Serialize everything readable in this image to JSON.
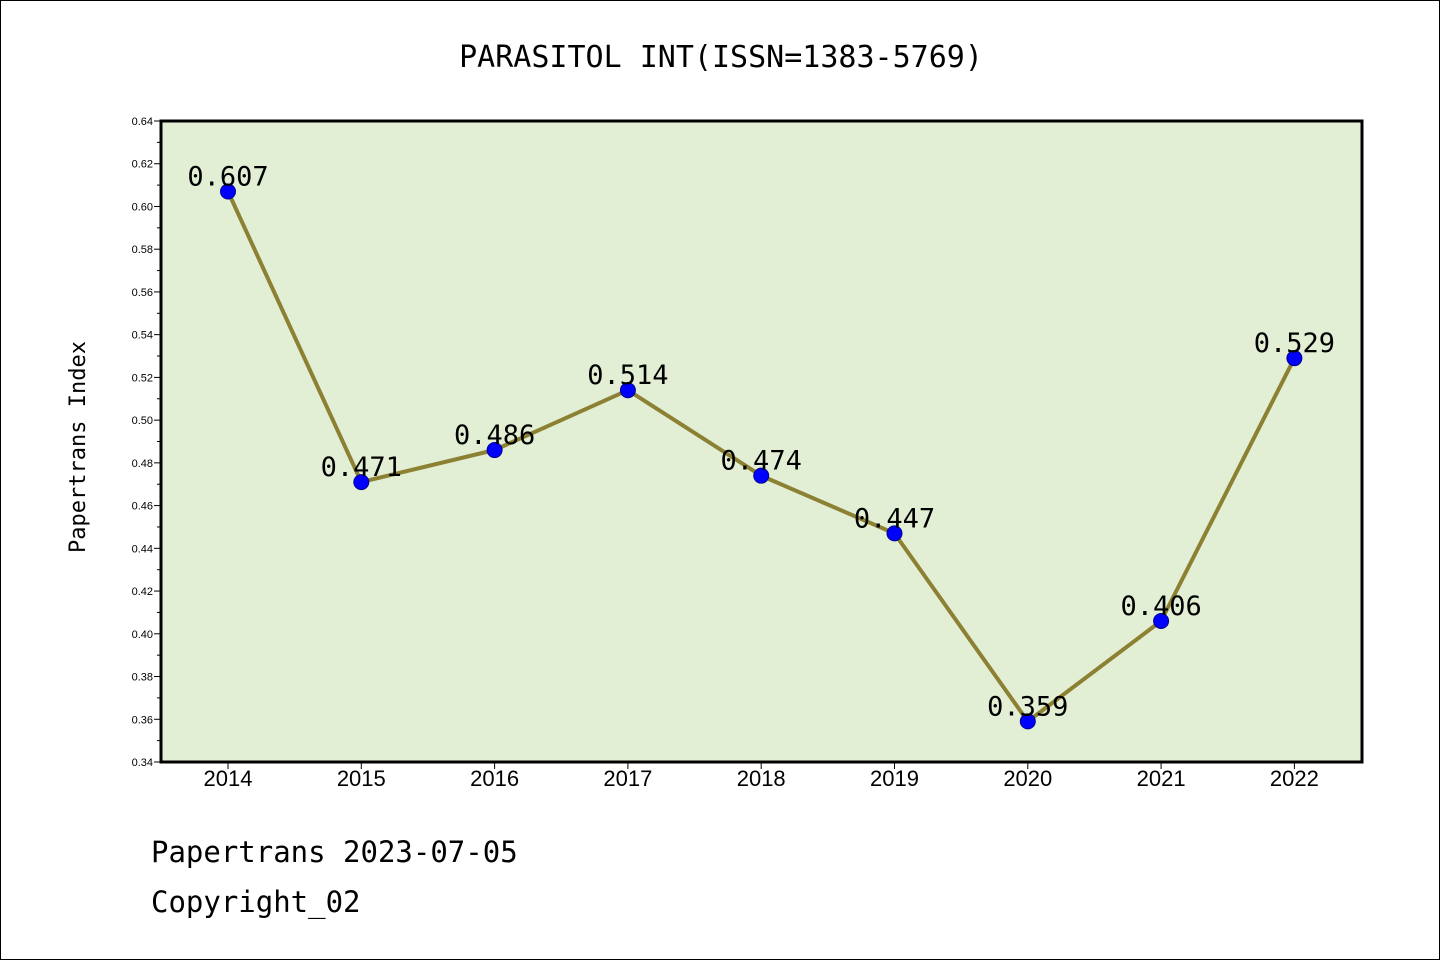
{
  "chart_data": {
    "type": "line",
    "title": "PARASITOL INT(ISSN=1383-5769)",
    "xlabel": "",
    "ylabel": "Papertrans Index",
    "categories": [
      "2014",
      "2015",
      "2016",
      "2017",
      "2018",
      "2019",
      "2020",
      "2021",
      "2022"
    ],
    "values": [
      0.607,
      0.471,
      0.486,
      0.514,
      0.474,
      0.447,
      0.359,
      0.406,
      0.529
    ],
    "data_labels": [
      "0.607",
      "0.471",
      "0.486",
      "0.514",
      "0.474",
      "0.447",
      "0.359",
      "0.406",
      "0.529"
    ],
    "ylim": [
      0.34,
      0.64
    ],
    "yticks": [
      "0.34",
      "0.36",
      "0.38",
      "0.40",
      "0.42",
      "0.44",
      "0.46",
      "0.48",
      "0.50",
      "0.52",
      "0.54",
      "0.56",
      "0.58",
      "0.60",
      "0.62",
      "0.64"
    ],
    "grid": false,
    "colors": {
      "plot_background": "#e2efd5",
      "line": "#8c8033",
      "marker": "#0000ff",
      "marker_edge": "#00008b",
      "axes": "#000000"
    }
  },
  "footer": {
    "line1": "Papertrans 2023-07-05",
    "line2": "Copyright_02"
  }
}
